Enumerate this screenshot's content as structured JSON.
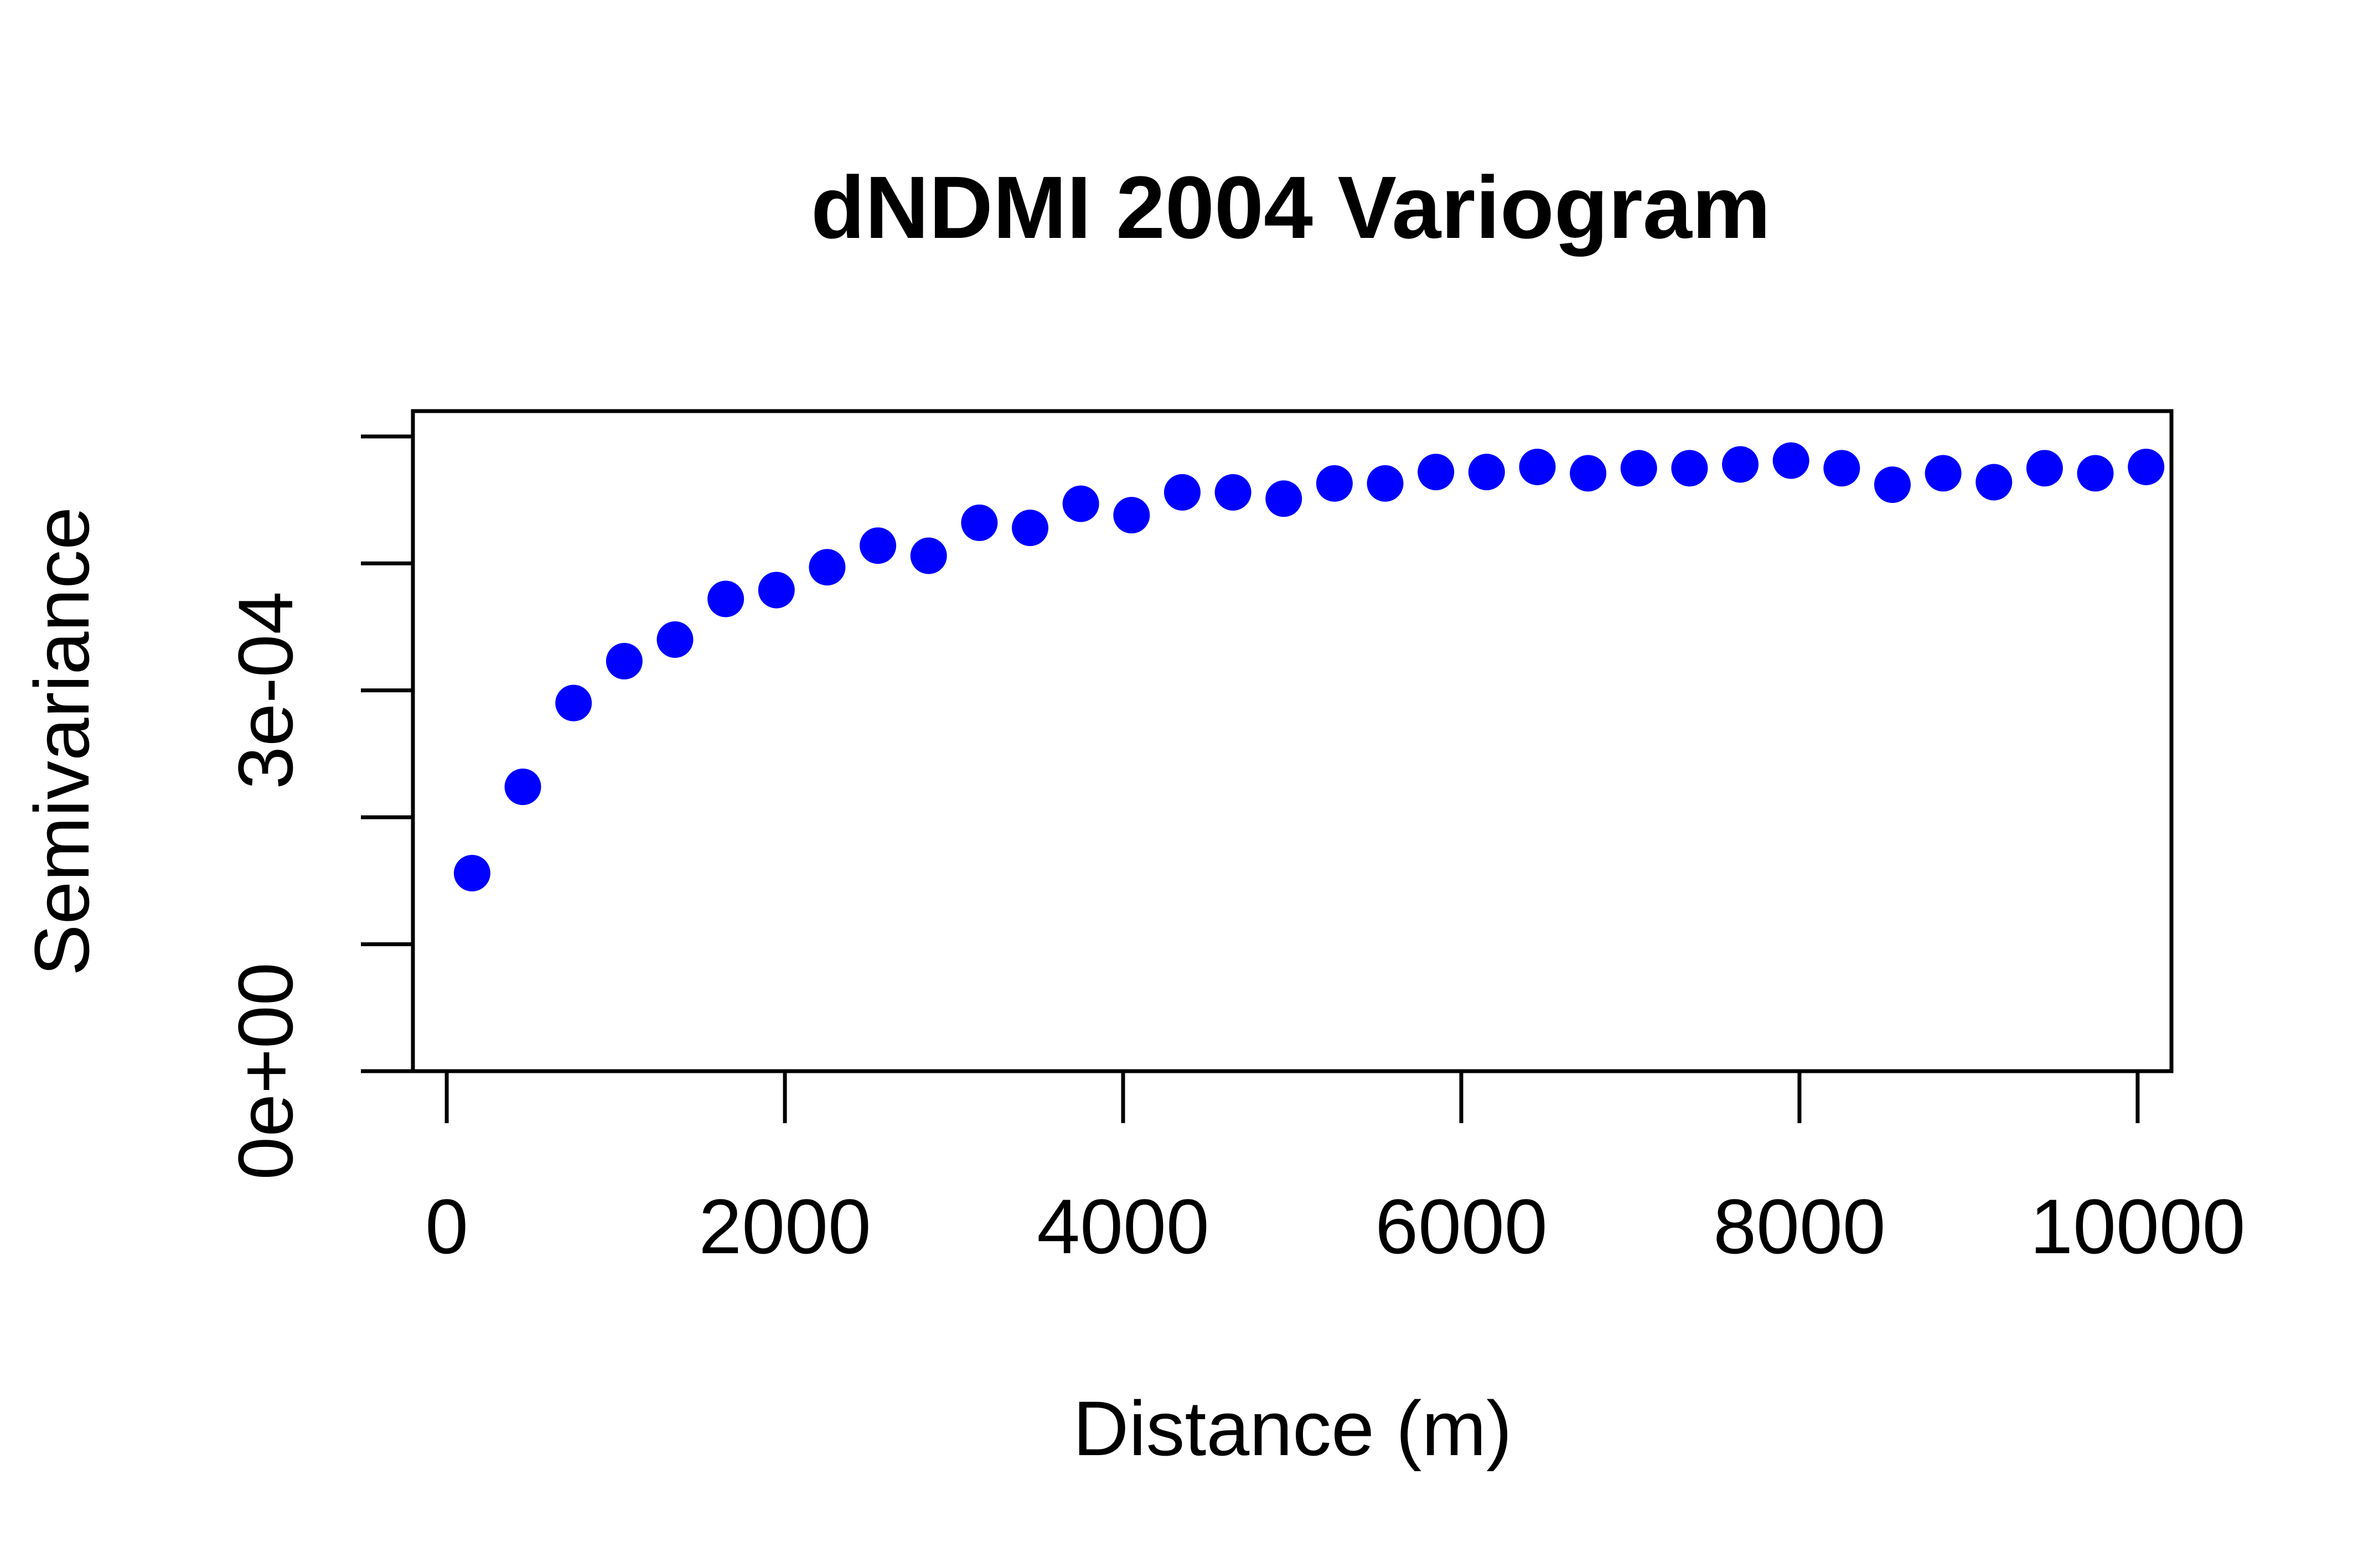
{
  "chart_data": {
    "type": "scatter",
    "title": "dNDMI 2004 Variogram",
    "xlabel": "Distance (m)",
    "ylabel": "Semivariance",
    "xlim": [
      -200,
      10200
    ],
    "ylim": [
      0,
      0.00052
    ],
    "x_ticks": [
      0,
      2000,
      4000,
      6000,
      8000,
      10000
    ],
    "x_tick_labels": [
      "0",
      "2000",
      "4000",
      "6000",
      "8000",
      "10000"
    ],
    "y_ticks": [
      0,
      0.0001,
      0.0002,
      0.0003,
      0.0004,
      0.0005
    ],
    "y_tick_labels": [
      "0e+00",
      "",
      "",
      "3e-04",
      "",
      ""
    ],
    "grid": false,
    "marker_color": "#0000ff",
    "series": [
      {
        "x": [
          150,
          450,
          750,
          1050,
          1350,
          1650,
          1950,
          2250,
          2550,
          2850,
          3150,
          3450,
          3750,
          4050,
          4350,
          4650,
          4950,
          5250,
          5550,
          5850,
          6150,
          6450,
          6750,
          7050,
          7350,
          7650,
          7950,
          8250,
          8550,
          8850,
          9150,
          9450,
          9750,
          10050
        ],
        "y": [
          0.000156,
          0.000224,
          0.00029,
          0.000323,
          0.00034,
          0.000372,
          0.000379,
          0.000397,
          0.000414,
          0.000406,
          0.000432,
          0.000428,
          0.000447,
          0.000438,
          0.000456,
          0.000456,
          0.000451,
          0.000463,
          0.000463,
          0.000472,
          0.000472,
          0.000476,
          0.000471,
          0.000475,
          0.000475,
          0.000478,
          0.000481,
          0.000475,
          0.000462,
          0.000471,
          0.000464,
          0.000475,
          0.000471,
          0.000476
        ]
      }
    ]
  }
}
